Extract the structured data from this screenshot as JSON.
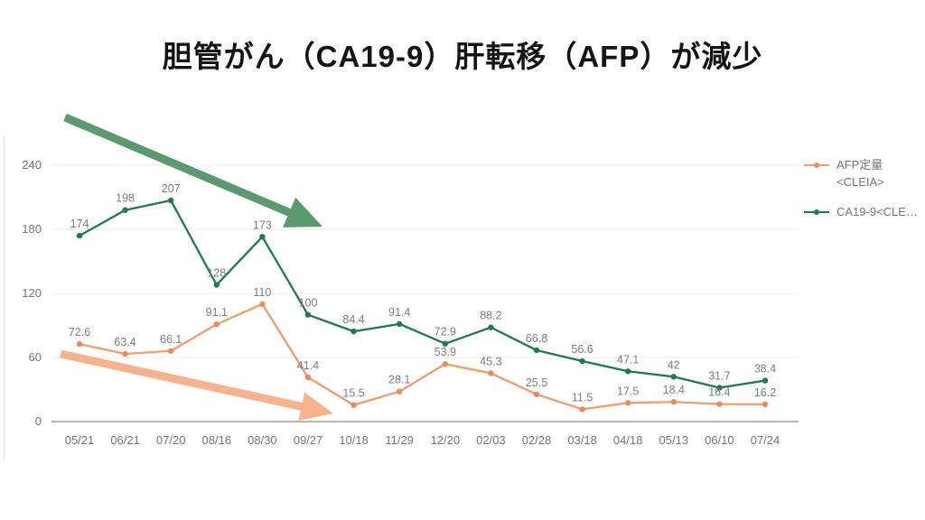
{
  "title": "胆管がん（CA19-9）肝転移（AFP）が減少",
  "chart_data": {
    "type": "line",
    "x": [
      "05/21",
      "06/21",
      "07/20",
      "08/16",
      "08/30",
      "09/27",
      "10/18",
      "11/29",
      "12/20",
      "02/03",
      "02/28",
      "03/18",
      "04/18",
      "05/13",
      "06/10",
      "07/24"
    ],
    "yticks": [
      0,
      60,
      120,
      180,
      240
    ],
    "ylim": [
      0,
      240
    ],
    "grid": true,
    "legend_position": "top-right",
    "series": [
      {
        "name": "AFP定量<CLEIA>",
        "legend_lines": [
          "AFP定量",
          "<CLEIA>"
        ],
        "line_color": "#f19c6a",
        "marker_color": "#ee8a54",
        "values": [
          72.6,
          63.4,
          66.1,
          91.1,
          110,
          41.4,
          15.5,
          28.1,
          53.9,
          45.3,
          25.5,
          11.5,
          17.5,
          18.4,
          16.4,
          16.2
        ]
      },
      {
        "name": "CA19-9<CLEIA>",
        "legend_label": "CA19-9<CLE…",
        "line_color": "#1e7c48",
        "marker_color": "#1e7c48",
        "values": [
          174,
          198,
          207,
          128,
          173,
          100,
          84.4,
          91.4,
          72.9,
          88.2,
          66.8,
          56.6,
          47.1,
          42,
          31.7,
          38.4
        ]
      }
    ]
  },
  "axis_style": {
    "tick_label_color": "#757575",
    "data_label_color": "#7a7d82",
    "grid_color": "#ebebeb",
    "baseline_color": "#9b9b9b"
  },
  "annotations": [
    {
      "name": "green-trend-arrow",
      "color": "#5a9a6e",
      "from": [
        72,
        130
      ],
      "tip": [
        357,
        251
      ],
      "body_width": 9,
      "head_len": 40,
      "head_width": 36
    },
    {
      "name": "orange-trend-arrow",
      "color": "#f6b38b",
      "from": [
        67,
        392
      ],
      "tip": [
        369,
        458
      ],
      "body_width": 9,
      "head_len": 36,
      "head_width": 32
    }
  ]
}
